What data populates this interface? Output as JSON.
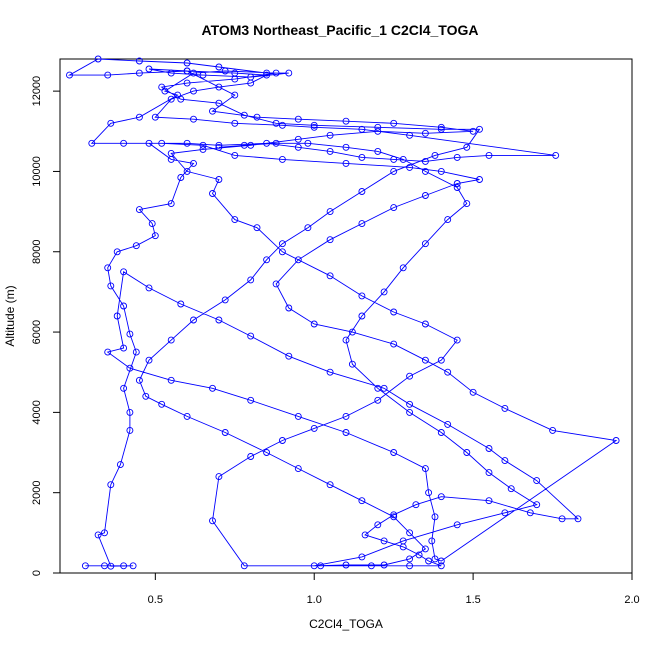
{
  "chart_data": {
    "type": "line",
    "title": "ATOM3 Northeast_Pacific_1 C2Cl4_TOGA",
    "xlabel": "C2Cl4_TOGA",
    "ylabel": "Altitude (m)",
    "xlim": [
      0.2,
      2.0
    ],
    "ylim": [
      0,
      12800
    ],
    "x_ticks": [
      0.5,
      1.0,
      1.5,
      2.0
    ],
    "x_tick_labels": [
      "0.5",
      "1.0",
      "1.5",
      "2.0"
    ],
    "y_ticks": [
      0,
      2000,
      4000,
      6000,
      8000,
      10000,
      12000
    ],
    "y_tick_labels": [
      "0",
      "2000",
      "4000",
      "6000",
      "8000",
      "10000",
      "12000"
    ],
    "grid": false,
    "colors": {
      "series": "#0000ff",
      "axis": "#000000",
      "background": "#ffffff"
    },
    "series": [
      {
        "marker": "open-circle",
        "points": [
          [
            0.28,
            180
          ],
          [
            0.34,
            180
          ],
          [
            0.4,
            180
          ],
          [
            0.43,
            180
          ],
          [
            0.36,
            170
          ],
          [
            0.32,
            950
          ],
          [
            0.34,
            1000
          ],
          [
            0.36,
            2200
          ],
          [
            0.39,
            2700
          ],
          [
            0.42,
            3550
          ],
          [
            0.42,
            4000
          ],
          [
            0.4,
            4600
          ],
          [
            0.44,
            5500
          ],
          [
            0.42,
            5950
          ],
          [
            0.4,
            6650
          ],
          [
            0.36,
            7150
          ],
          [
            0.35,
            7600
          ],
          [
            0.38,
            8000
          ],
          [
            0.44,
            8150
          ],
          [
            0.5,
            8400
          ],
          [
            0.49,
            8700
          ],
          [
            0.45,
            9050
          ],
          [
            0.55,
            9200
          ],
          [
            0.58,
            9850
          ],
          [
            0.62,
            10200
          ],
          [
            0.55,
            10300
          ],
          [
            0.48,
            10700
          ],
          [
            0.6,
            10700
          ],
          [
            0.7,
            10650
          ],
          [
            0.85,
            10700
          ],
          [
            0.95,
            10600
          ],
          [
            1.05,
            10500
          ],
          [
            1.15,
            10350
          ],
          [
            1.25,
            10300
          ],
          [
            1.35,
            10250
          ],
          [
            1.45,
            10350
          ],
          [
            1.55,
            10400
          ],
          [
            1.76,
            10400
          ],
          [
            1.3,
            10900
          ],
          [
            1.15,
            11050
          ],
          [
            1.0,
            11100
          ],
          [
            0.9,
            11150
          ],
          [
            0.75,
            11200
          ],
          [
            0.62,
            11300
          ],
          [
            0.5,
            11350
          ],
          [
            0.55,
            11800
          ],
          [
            0.62,
            12000
          ],
          [
            0.7,
            12100
          ],
          [
            0.8,
            12200
          ],
          [
            0.85,
            12400
          ],
          [
            0.75,
            12450
          ],
          [
            0.6,
            12500
          ],
          [
            0.45,
            12450
          ],
          [
            0.35,
            12400
          ],
          [
            0.23,
            12400
          ],
          [
            0.32,
            12800
          ],
          [
            0.45,
            12750
          ],
          [
            0.6,
            12700
          ],
          [
            0.7,
            12600
          ],
          [
            0.85,
            12450
          ],
          [
            0.92,
            12450
          ],
          [
            0.8,
            12350
          ],
          [
            0.65,
            12400
          ],
          [
            0.55,
            12450
          ],
          [
            0.48,
            12550
          ],
          [
            0.6,
            12500
          ],
          [
            0.75,
            11900
          ],
          [
            0.68,
            11500
          ],
          [
            0.82,
            11350
          ],
          [
            0.95,
            11300
          ],
          [
            1.1,
            11250
          ],
          [
            1.25,
            11200
          ],
          [
            1.4,
            11100
          ],
          [
            1.5,
            11000
          ],
          [
            1.35,
            10950
          ],
          [
            1.2,
            11000
          ],
          [
            1.05,
            10900
          ],
          [
            0.95,
            10800
          ],
          [
            0.8,
            10650
          ],
          [
            0.65,
            10550
          ],
          [
            0.55,
            10450
          ],
          [
            0.6,
            10000
          ],
          [
            0.7,
            9800
          ],
          [
            0.68,
            9450
          ],
          [
            0.75,
            8800
          ],
          [
            0.82,
            8600
          ],
          [
            0.9,
            8000
          ],
          [
            1.05,
            7400
          ],
          [
            1.15,
            6900
          ],
          [
            1.25,
            6500
          ],
          [
            1.35,
            6200
          ],
          [
            1.45,
            5800
          ],
          [
            1.4,
            5300
          ],
          [
            1.3,
            4900
          ],
          [
            1.2,
            4300
          ],
          [
            1.1,
            3900
          ],
          [
            1.0,
            3600
          ],
          [
            0.9,
            3300
          ],
          [
            0.8,
            2900
          ],
          [
            0.7,
            2400
          ],
          [
            0.68,
            1300
          ],
          [
            0.78,
            180
          ],
          [
            1.02,
            180
          ],
          [
            1.18,
            180
          ],
          [
            1.3,
            180
          ],
          [
            1.4,
            180
          ],
          [
            1.36,
            300
          ],
          [
            1.33,
            450
          ],
          [
            1.28,
            650
          ],
          [
            1.22,
            800
          ],
          [
            1.16,
            950
          ],
          [
            1.2,
            1200
          ],
          [
            1.25,
            1450
          ],
          [
            1.32,
            1700
          ],
          [
            1.4,
            1900
          ],
          [
            1.55,
            1800
          ],
          [
            1.68,
            1500
          ],
          [
            1.78,
            1350
          ],
          [
            1.83,
            1350
          ],
          [
            1.7,
            2300
          ],
          [
            1.6,
            2800
          ],
          [
            1.55,
            3100
          ],
          [
            1.42,
            3700
          ],
          [
            1.3,
            4200
          ],
          [
            1.22,
            4600
          ],
          [
            1.05,
            5000
          ],
          [
            0.92,
            5400
          ],
          [
            0.8,
            5900
          ],
          [
            0.7,
            6300
          ],
          [
            0.58,
            6700
          ],
          [
            0.48,
            7100
          ],
          [
            0.4,
            7500
          ],
          [
            0.38,
            6400
          ],
          [
            0.4,
            5600
          ],
          [
            0.35,
            5500
          ],
          [
            0.42,
            5100
          ],
          [
            0.55,
            4800
          ],
          [
            0.68,
            4600
          ],
          [
            0.8,
            4300
          ],
          [
            0.95,
            3900
          ],
          [
            1.1,
            3500
          ],
          [
            1.25,
            3000
          ],
          [
            1.35,
            2600
          ],
          [
            1.36,
            2000
          ],
          [
            1.38,
            1400
          ],
          [
            1.37,
            800
          ],
          [
            1.38,
            350
          ],
          [
            1.4,
            300
          ],
          [
            1.95,
            3300
          ],
          [
            1.75,
            3550
          ],
          [
            1.6,
            4100
          ],
          [
            1.5,
            4500
          ],
          [
            1.42,
            5000
          ],
          [
            1.35,
            5300
          ],
          [
            1.25,
            5700
          ],
          [
            1.12,
            6000
          ],
          [
            1.0,
            6200
          ],
          [
            0.92,
            6600
          ],
          [
            0.88,
            7200
          ],
          [
            0.95,
            7800
          ],
          [
            1.05,
            8300
          ],
          [
            1.15,
            8700
          ],
          [
            1.25,
            9100
          ],
          [
            1.35,
            9400
          ],
          [
            1.45,
            9700
          ],
          [
            1.52,
            9800
          ],
          [
            1.4,
            10000
          ],
          [
            1.3,
            10100
          ],
          [
            1.1,
            10200
          ],
          [
            0.9,
            10300
          ],
          [
            0.75,
            10400
          ],
          [
            0.65,
            10650
          ],
          [
            0.52,
            10700
          ],
          [
            0.4,
            10700
          ],
          [
            0.3,
            10700
          ],
          [
            0.36,
            11200
          ],
          [
            0.45,
            11350
          ],
          [
            0.57,
            11900
          ],
          [
            0.53,
            12000
          ],
          [
            0.62,
            12450
          ],
          [
            0.72,
            12500
          ],
          [
            0.88,
            12450
          ],
          [
            0.75,
            12300
          ],
          [
            0.6,
            12200
          ],
          [
            0.52,
            12100
          ],
          [
            0.58,
            11800
          ],
          [
            0.7,
            11700
          ],
          [
            0.78,
            11400
          ],
          [
            0.88,
            11200
          ],
          [
            1.0,
            11150
          ],
          [
            1.2,
            11100
          ],
          [
            1.4,
            11050
          ],
          [
            1.52,
            11050
          ],
          [
            1.48,
            10600
          ],
          [
            1.38,
            10400
          ],
          [
            1.25,
            10000
          ],
          [
            1.15,
            9500
          ],
          [
            1.05,
            9000
          ],
          [
            0.98,
            8600
          ],
          [
            0.9,
            8200
          ],
          [
            0.85,
            7800
          ],
          [
            0.8,
            7300
          ],
          [
            0.72,
            6800
          ],
          [
            0.62,
            6300
          ],
          [
            0.55,
            5800
          ],
          [
            0.48,
            5300
          ],
          [
            0.45,
            4800
          ],
          [
            0.47,
            4400
          ],
          [
            0.52,
            4200
          ],
          [
            0.6,
            3900
          ],
          [
            0.72,
            3500
          ],
          [
            0.85,
            3000
          ],
          [
            0.95,
            2600
          ],
          [
            1.05,
            2200
          ],
          [
            1.15,
            1800
          ],
          [
            1.25,
            1400
          ],
          [
            1.3,
            1000
          ],
          [
            1.35,
            600
          ],
          [
            1.3,
            350
          ],
          [
            1.22,
            200
          ],
          [
            1.1,
            200
          ],
          [
            1.0,
            180
          ],
          [
            1.15,
            400
          ],
          [
            1.28,
            800
          ],
          [
            1.45,
            1200
          ],
          [
            1.6,
            1500
          ],
          [
            1.7,
            1700
          ],
          [
            1.62,
            2100
          ],
          [
            1.55,
            2500
          ],
          [
            1.48,
            3000
          ],
          [
            1.4,
            3500
          ],
          [
            1.3,
            4000
          ],
          [
            1.2,
            4600
          ],
          [
            1.12,
            5200
          ],
          [
            1.1,
            5800
          ],
          [
            1.15,
            6400
          ],
          [
            1.22,
            7000
          ],
          [
            1.28,
            7600
          ],
          [
            1.35,
            8200
          ],
          [
            1.42,
            8800
          ],
          [
            1.48,
            9200
          ],
          [
            1.45,
            9600
          ],
          [
            1.35,
            10000
          ],
          [
            1.28,
            10300
          ],
          [
            1.2,
            10500
          ],
          [
            1.1,
            10600
          ],
          [
            0.98,
            10700
          ],
          [
            0.88,
            10700
          ],
          [
            0.78,
            10650
          ],
          [
            0.7,
            10600
          ]
        ]
      }
    ]
  }
}
